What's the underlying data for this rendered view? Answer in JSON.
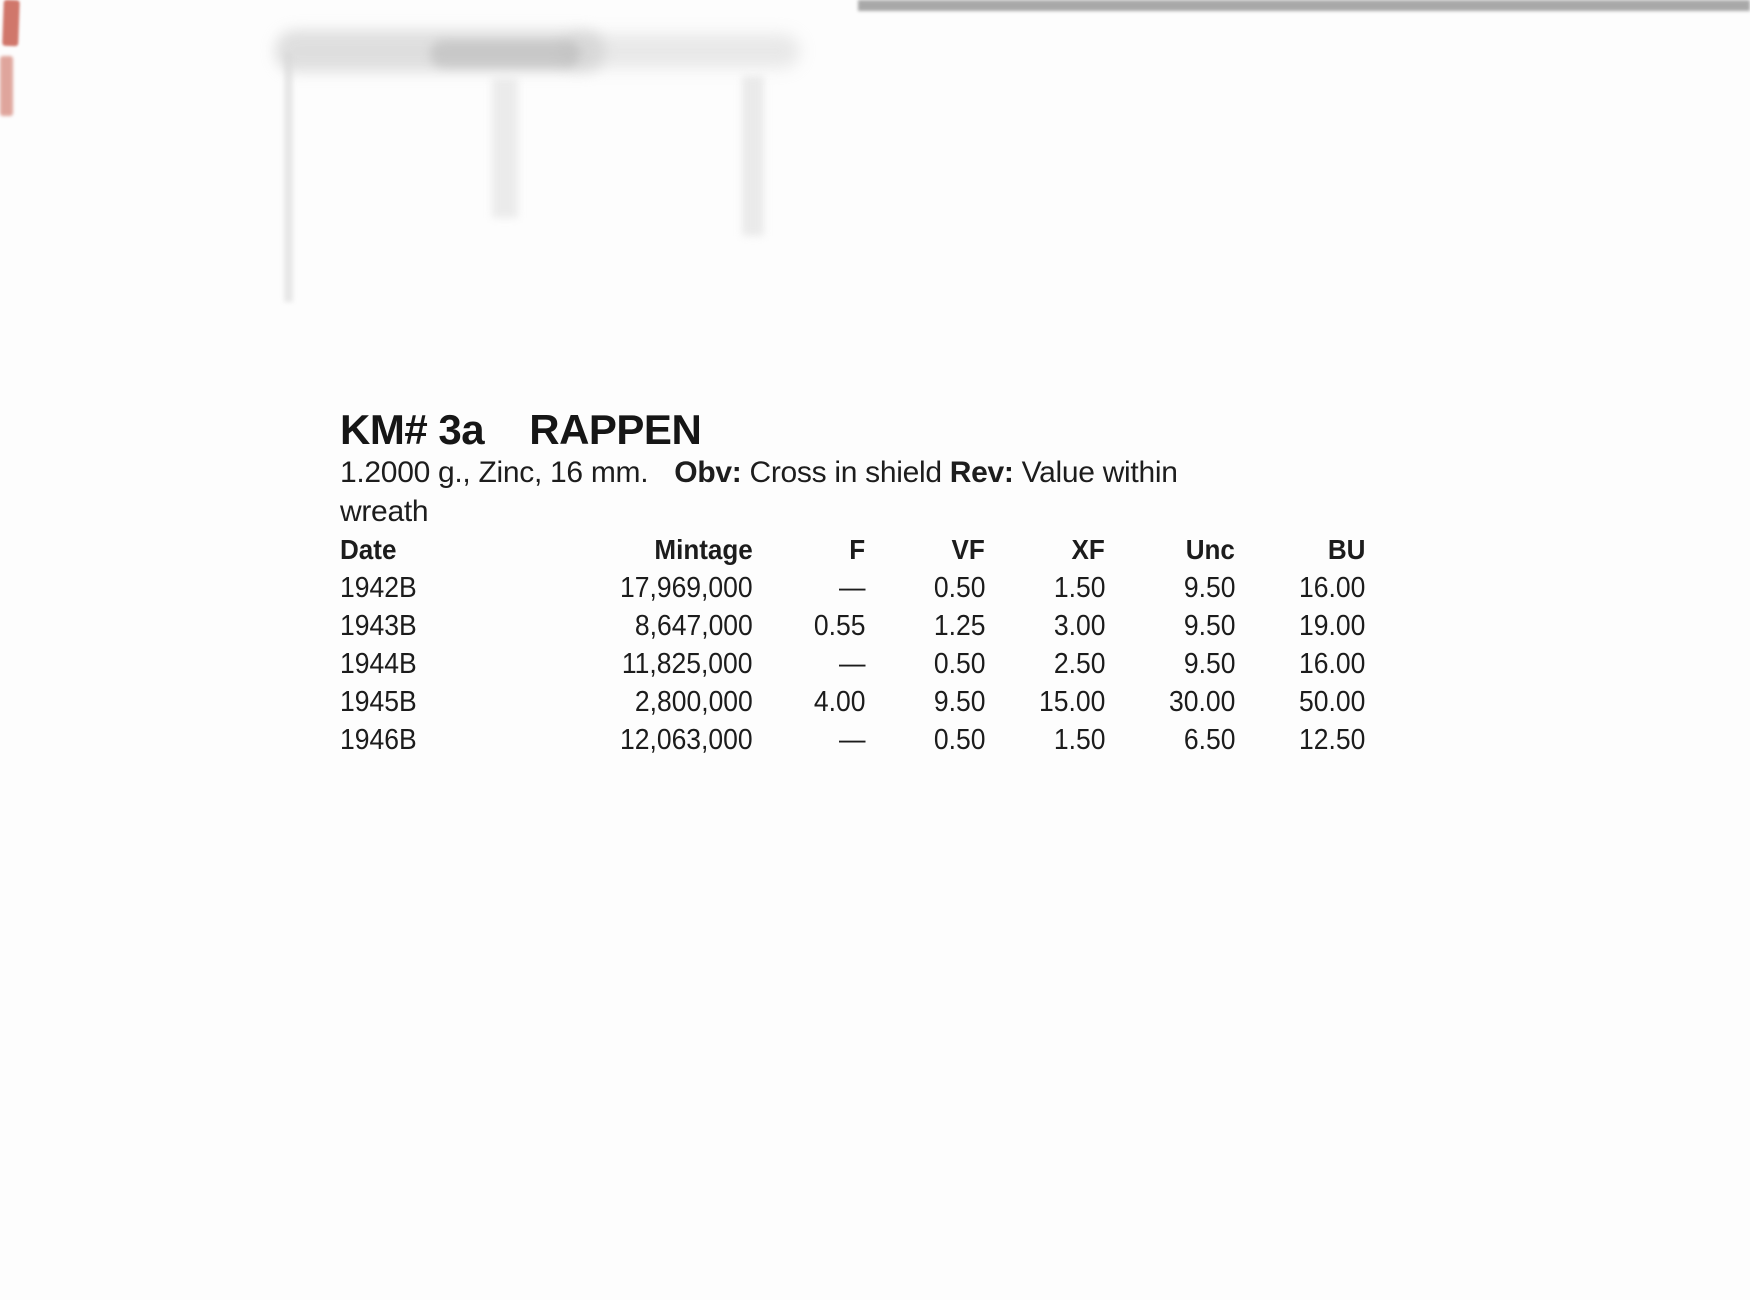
{
  "page": {
    "background_color": "#fdfdfd",
    "text_color": "#1d1d1d"
  },
  "entry": {
    "km_label": "KM# 3a",
    "title": "RAPPEN",
    "specs": "1.2000 g., Zinc, 16 mm.",
    "obverse_label": "Obv:",
    "obverse_desc": "Cross in shield",
    "reverse_label": "Rev:",
    "reverse_desc": "Value within wreath"
  },
  "price_table": {
    "headers": [
      "Date",
      "Mintage",
      "F",
      "VF",
      "XF",
      "Unc",
      "BU"
    ],
    "rows": [
      {
        "date": "1942B",
        "mintage": "17,969,000",
        "f": "—",
        "vf": "0.50",
        "xf": "1.50",
        "unc": "9.50",
        "bu": "16.00"
      },
      {
        "date": "1943B",
        "mintage": "8,647,000",
        "f": "0.55",
        "vf": "1.25",
        "xf": "3.00",
        "unc": "9.50",
        "bu": "19.00"
      },
      {
        "date": "1944B",
        "mintage": "11,825,000",
        "f": "—",
        "vf": "0.50",
        "xf": "2.50",
        "unc": "9.50",
        "bu": "16.00"
      },
      {
        "date": "1945B",
        "mintage": "2,800,000",
        "f": "4.00",
        "vf": "9.50",
        "xf": "15.00",
        "unc": "30.00",
        "bu": "50.00"
      },
      {
        "date": "1946B",
        "mintage": "12,063,000",
        "f": "—",
        "vf": "0.50",
        "xf": "1.50",
        "unc": "6.50",
        "bu": "12.50"
      }
    ]
  },
  "scan_artifacts": {
    "red_streak_color": "#c04434",
    "smudge_color": "#c6c6c6",
    "top_band_color": "#636363"
  }
}
